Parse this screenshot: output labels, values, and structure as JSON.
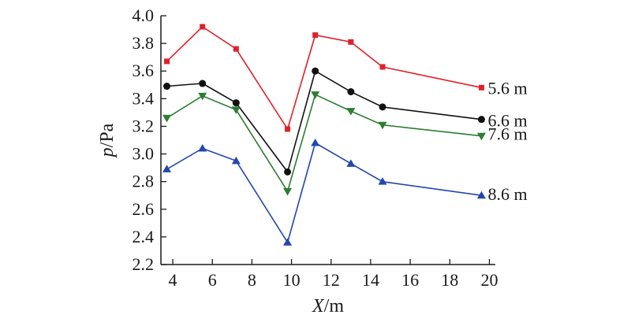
{
  "chart_data": {
    "type": "line",
    "title": "",
    "xlabel": {
      "var": "X",
      "unit": "/m"
    },
    "ylabel": {
      "var": "p",
      "unit": "/Pa"
    },
    "xlim": [
      3.4,
      20.3
    ],
    "ylim": [
      2.2,
      4.0
    ],
    "x_ticks": [
      "4",
      "6",
      "8",
      "10",
      "12",
      "14",
      "16",
      "18",
      "20"
    ],
    "y_ticks": [
      "2.2",
      "2.4",
      "2.6",
      "2.8",
      "3.0",
      "3.2",
      "3.4",
      "3.6",
      "3.8",
      "4.0"
    ],
    "grid": false,
    "x": [
      3.7,
      5.5,
      7.2,
      9.8,
      11.2,
      13.0,
      14.6,
      19.6
    ],
    "series": [
      {
        "name": "5.6 m",
        "color": "#e0202a",
        "marker": "square",
        "values": [
          3.67,
          3.92,
          3.76,
          3.18,
          3.86,
          3.81,
          3.63,
          3.48
        ]
      },
      {
        "name": "6.6 m",
        "color": "#111111",
        "marker": "circle",
        "values": [
          3.49,
          3.51,
          3.37,
          2.87,
          3.6,
          3.45,
          3.34,
          3.25
        ]
      },
      {
        "name": "7.6 m",
        "color": "#2e7d32",
        "marker": "triangle-down",
        "values": [
          3.26,
          3.42,
          3.32,
          2.73,
          3.43,
          3.31,
          3.21,
          3.13
        ]
      },
      {
        "name": "8.6 m",
        "color": "#2346b0",
        "marker": "triangle-up",
        "values": [
          2.89,
          3.04,
          2.95,
          2.36,
          3.08,
          2.93,
          2.8,
          2.7
        ]
      }
    ]
  }
}
